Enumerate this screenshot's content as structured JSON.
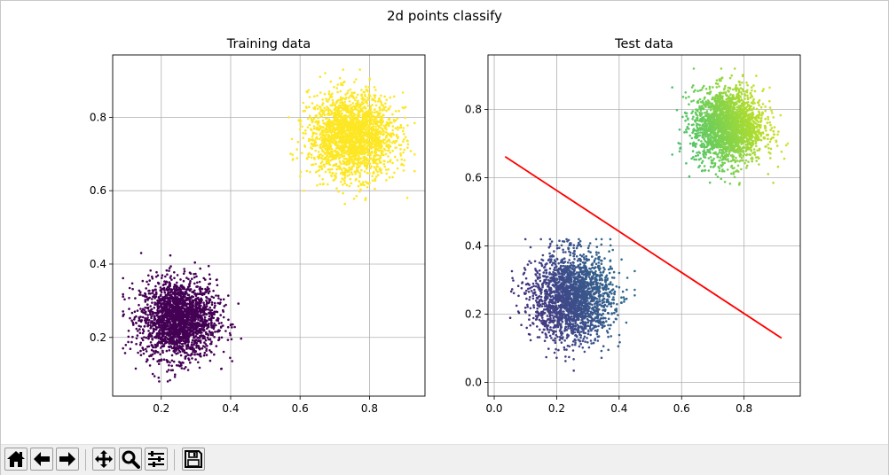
{
  "figure": {
    "suptitle": "2d points classify"
  },
  "chart_data": [
    {
      "type": "scatter",
      "title": "Training data",
      "xlabel": "",
      "ylabel": "",
      "xlim": [
        0.06,
        0.96
      ],
      "ylim": [
        0.04,
        0.97
      ],
      "xticks": [
        0.2,
        0.4,
        0.6,
        0.8
      ],
      "yticks": [
        0.2,
        0.4,
        0.6,
        0.8
      ],
      "grid": true,
      "series": [
        {
          "cluster_center": [
            0.25,
            0.25
          ],
          "x_range": [
            0.09,
            0.45
          ],
          "y_range": [
            0.08,
            0.43
          ],
          "color": "#440154"
        },
        {
          "cluster_center": [
            0.75,
            0.75
          ],
          "x_range": [
            0.52,
            0.93
          ],
          "y_range": [
            0.56,
            0.93
          ],
          "color": "#fde725"
        }
      ]
    },
    {
      "type": "scatter",
      "title": "Test data",
      "xlabel": "",
      "ylabel": "",
      "xlim": [
        -0.02,
        0.98
      ],
      "ylim": [
        -0.04,
        0.96
      ],
      "xticks": [
        0.0,
        0.2,
        0.4,
        0.6,
        0.8
      ],
      "yticks": [
        0.0,
        0.2,
        0.4,
        0.6,
        0.8
      ],
      "grid": true,
      "series": [
        {
          "cluster_center": [
            0.25,
            0.25
          ],
          "x_range": [
            0.03,
            0.45
          ],
          "y_range": [
            0.0,
            0.42
          ],
          "colormap": "viridis (dark purple to blue)"
        },
        {
          "cluster_center": [
            0.75,
            0.75
          ],
          "x_range": [
            0.57,
            0.94
          ],
          "y_range": [
            0.56,
            0.92
          ],
          "colormap": "viridis (green to yellow)"
        }
      ],
      "decision_line": {
        "x": [
          0.035,
          0.92
        ],
        "y": [
          0.662,
          0.13
        ],
        "color": "#ff0000"
      }
    }
  ],
  "toolbar": {
    "buttons": [
      {
        "name": "home-button",
        "icon": "home-icon"
      },
      {
        "name": "back-button",
        "icon": "arrow-left-icon"
      },
      {
        "name": "forward-button",
        "icon": "arrow-right-icon"
      },
      {
        "name": "pan-button",
        "icon": "move-icon"
      },
      {
        "name": "zoom-button",
        "icon": "magnifier-icon"
      },
      {
        "name": "configure-subplots-button",
        "icon": "sliders-icon"
      },
      {
        "name": "save-button",
        "icon": "floppy-disk-icon"
      }
    ]
  }
}
